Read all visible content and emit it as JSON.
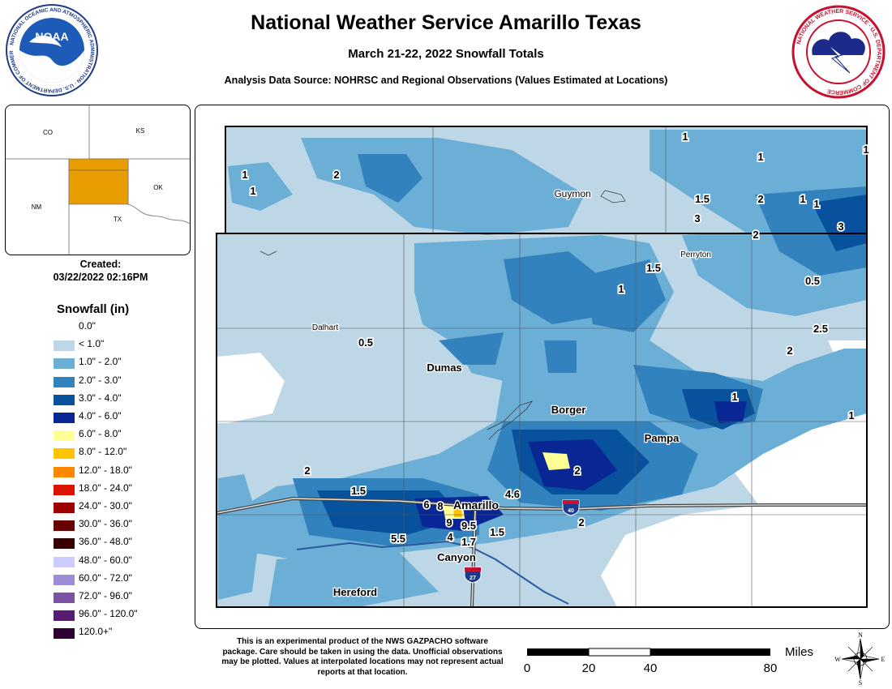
{
  "header": {
    "title": "National Weather Service Amarillo Texas",
    "subtitle": "March 21-22, 2022 Snowfall Totals",
    "source": "Analysis Data Source: NOHRSC and Regional Observations (Values Estimated at Locations)"
  },
  "logos": {
    "noaa_text": "NOAA",
    "noaa_ring": "NATIONAL OCEANIC AND ATMOSPHERIC ADMINISTRATION · U.S. DEPARTMENT OF COMMERCE",
    "nws_ring": "NATIONAL WEATHER SERVICE · U.S. DEPARTMENT OF COMMERCE"
  },
  "inset": {
    "states": [
      "CO",
      "KS",
      "NM",
      "OK",
      "TX"
    ],
    "highlight_color": "#e89d00"
  },
  "created": {
    "label": "Created:",
    "value": "03/22/2022 02:16PM"
  },
  "legend": {
    "title": "Snowfall (in)",
    "items": [
      {
        "label": "0.0\"",
        "color": "#ffffff"
      },
      {
        "label": "< 1.0\"",
        "color": "#bdd7e7"
      },
      {
        "label": "1.0\" - 2.0\"",
        "color": "#6baed6"
      },
      {
        "label": "2.0\" - 3.0\"",
        "color": "#3182bd"
      },
      {
        "label": "3.0\" - 4.0\"",
        "color": "#08519c"
      },
      {
        "label": "4.0\" - 6.0\"",
        "color": "#082694"
      },
      {
        "label": "6.0\" - 8.0\"",
        "color": "#ffff96"
      },
      {
        "label": "8.0\" - 12.0\"",
        "color": "#ffc400"
      },
      {
        "label": "12.0\" - 18.0\"",
        "color": "#ff8700"
      },
      {
        "label": "18.0\" - 24.0\"",
        "color": "#db1400"
      },
      {
        "label": "24.0\" - 30.0\"",
        "color": "#9e0000"
      },
      {
        "label": "30.0\" - 36.0\"",
        "color": "#690000"
      },
      {
        "label": "36.0\" - 48.0\"",
        "color": "#360000"
      },
      {
        "label": "48.0\" - 60.0\"",
        "color": "#ccccff"
      },
      {
        "label": "60.0\" - 72.0\"",
        "color": "#9f8cd8"
      },
      {
        "label": "72.0\" - 96.0\"",
        "color": "#7c52a5"
      },
      {
        "label": "96.0\" - 120.0\"",
        "color": "#561c72"
      },
      {
        "label": "120.0+\"",
        "color": "#2e0033"
      }
    ]
  },
  "map": {
    "cities": [
      "Guymon",
      "Perryton",
      "Dalhart",
      "Dumas",
      "Borger",
      "Pampa",
      "Amarillo",
      "Canyon",
      "Hereford"
    ],
    "highways": [
      "40",
      "27"
    ],
    "observations": [
      "1",
      "1",
      "1",
      "2",
      "1",
      "1",
      "1.5",
      "2",
      "1",
      "1",
      "3",
      "3",
      "2",
      "1.5",
      "0.5",
      "1",
      "2.5",
      "2",
      "0.5",
      "1",
      "1",
      "2",
      "2",
      "1.5",
      "6",
      "8",
      "4.6",
      "9",
      "9.5",
      "4",
      "1.7",
      "1.5",
      "5.5",
      "2"
    ]
  },
  "disclaimer": "This is an experimental product of the NWS GAZPACHO software package. Care should be taken in using the data. Unofficial observations may be plotted. Values at interpolated locations may not represent actual reports at that location.",
  "scalebar": {
    "unit": "Miles",
    "ticks": [
      "0",
      "20",
      "40",
      "80"
    ]
  },
  "compass": {
    "n": "N",
    "s": "S",
    "e": "E",
    "w": "W"
  }
}
